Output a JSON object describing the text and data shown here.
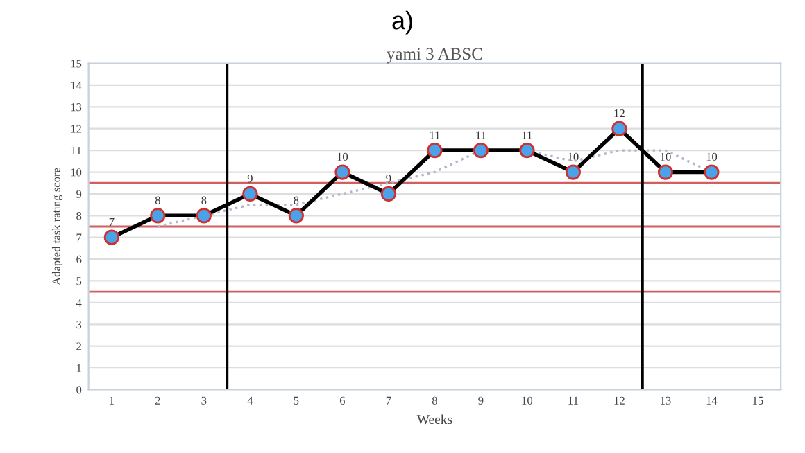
{
  "chart_data": {
    "type": "line",
    "title": "a)",
    "subtitle": "yami 3 ABSC",
    "xlabel": "Weeks",
    "ylabel": "Adapted task rating score",
    "x": [
      1,
      2,
      3,
      4,
      5,
      6,
      7,
      8,
      9,
      10,
      11,
      12,
      13,
      14
    ],
    "series": [
      {
        "color": "#000000",
        "values": [
          7,
          8,
          8,
          9,
          8,
          10,
          9,
          11,
          11,
          11,
          10,
          12,
          10,
          10
        ],
        "marker": "circle",
        "data_labels": true
      },
      {
        "color": "#b0b8c8",
        "values": [
          null,
          7.5,
          8,
          8.5,
          8.5,
          9,
          9.5,
          10,
          11,
          11,
          10.5,
          11,
          11,
          10
        ],
        "marker": "none",
        "line_style": "dotted"
      }
    ],
    "xlim": [
      0.5,
      15.5
    ],
    "xticks": [
      1,
      2,
      3,
      4,
      5,
      6,
      7,
      8,
      9,
      10,
      11,
      12,
      13,
      14,
      15
    ],
    "ylim": [
      0,
      15
    ],
    "yticks": [
      0,
      1,
      2,
      3,
      4,
      5,
      6,
      7,
      8,
      9,
      10,
      11,
      12,
      13,
      14,
      15
    ],
    "grid": "y",
    "legend": false,
    "ref_lines": [
      {
        "axis": "y",
        "value": 9.5,
        "color": "#d06060"
      },
      {
        "axis": "y",
        "value": 7.5,
        "color": "#d06060"
      },
      {
        "axis": "y",
        "value": 4.5,
        "color": "#d06060"
      },
      {
        "axis": "x",
        "value": 3.5,
        "color": "#000000"
      },
      {
        "axis": "x",
        "value": 12.5,
        "color": "#000000"
      }
    ]
  }
}
